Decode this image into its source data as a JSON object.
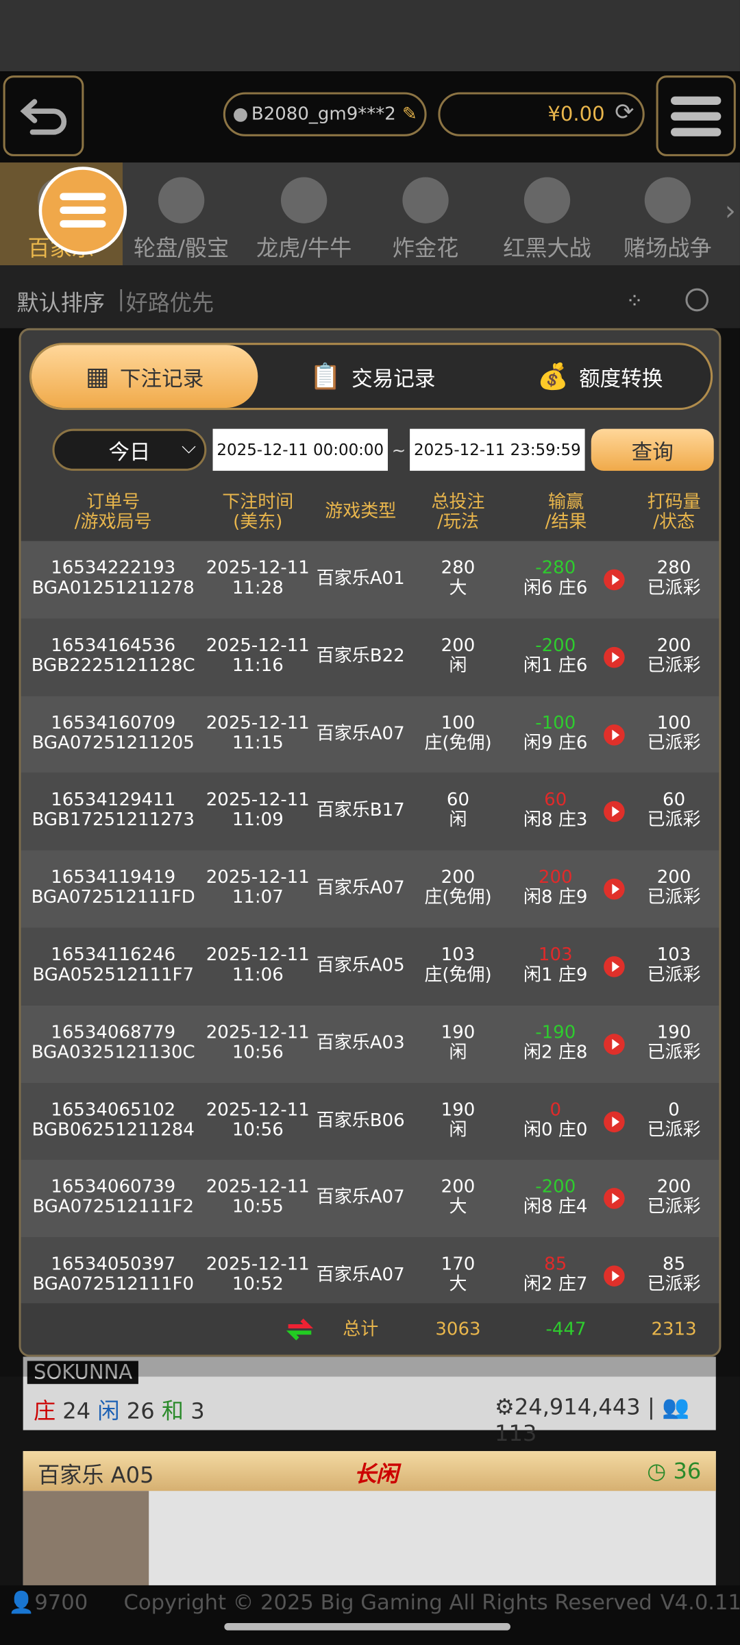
{
  "header": {
    "user": "B2080_gm9***2",
    "balance": "¥0.00"
  },
  "categories": [
    "百家乐",
    "轮盘/骰宝",
    "龙虎/牛牛",
    "炸金花",
    "红黑大战",
    "赌场战争"
  ],
  "sort_options": [
    "默认排序",
    "好路优先"
  ],
  "modal": {
    "tabs": [
      "下注记录",
      "交易记录",
      "额度转换"
    ],
    "filter": {
      "period": "今日",
      "start": "2025-12-11 00:00:00",
      "separator": "~",
      "end": "2025-12-11 23:59:59",
      "query": "查询"
    },
    "table": {
      "headers": [
        [
          "订单号",
          "/游戏局号"
        ],
        [
          "下注时间",
          "(美东)"
        ],
        [
          "游戏类型"
        ],
        [
          "总投注",
          "/玩法"
        ],
        [
          "输赢",
          "/结果"
        ],
        [
          "打码量",
          "/状态"
        ]
      ],
      "rows": [
        {
          "order": "16534222193",
          "round": "BGA01251211278",
          "date": "2025-12-11",
          "time": "11:28",
          "game": "百家乐A01",
          "bet": 280,
          "play": "大",
          "win_loss": -280,
          "result": "闲6 庄6",
          "rolling": 280,
          "status": "已派彩"
        },
        {
          "order": "16534164536",
          "round": "BGB2225121128C",
          "date": "2025-12-11",
          "time": "11:16",
          "game": "百家乐B22",
          "bet": 200,
          "play": "闲",
          "win_loss": -200,
          "result": "闲1 庄6",
          "rolling": 200,
          "status": "已派彩"
        },
        {
          "order": "16534160709",
          "round": "BGA07251211205",
          "date": "2025-12-11",
          "time": "11:15",
          "game": "百家乐A07",
          "bet": 100,
          "play": "庄(免佣)",
          "win_loss": -100,
          "result": "闲9 庄6",
          "rolling": 100,
          "status": "已派彩"
        },
        {
          "order": "16534129411",
          "round": "BGB17251211273",
          "date": "2025-12-11",
          "time": "11:09",
          "game": "百家乐B17",
          "bet": 60,
          "play": "闲",
          "win_loss": 60,
          "result": "闲8 庄3",
          "rolling": 60,
          "status": "已派彩"
        },
        {
          "order": "16534119419",
          "round": "BGA072512111FD",
          "date": "2025-12-11",
          "time": "11:07",
          "game": "百家乐A07",
          "bet": 200,
          "play": "庄(免佣)",
          "win_loss": 200,
          "result": "闲8 庄9",
          "rolling": 200,
          "status": "已派彩"
        },
        {
          "order": "16534116246",
          "round": "BGA052512111F7",
          "date": "2025-12-11",
          "time": "11:06",
          "game": "百家乐A05",
          "bet": 103,
          "play": "庄(免佣)",
          "win_loss": 103,
          "result": "闲1 庄9",
          "rolling": 103,
          "status": "已派彩"
        },
        {
          "order": "16534068779",
          "round": "BGA0325121130C",
          "date": "2025-12-11",
          "time": "10:56",
          "game": "百家乐A03",
          "bet": 190,
          "play": "闲",
          "win_loss": -190,
          "result": "闲2 庄8",
          "rolling": 190,
          "status": "已派彩"
        },
        {
          "order": "16534065102",
          "round": "BGB06251211284",
          "date": "2025-12-11",
          "time": "10:56",
          "game": "百家乐B06",
          "bet": 190,
          "play": "闲",
          "win_loss": 0,
          "result": "闲0 庄0",
          "rolling": 0,
          "status": "已派彩"
        },
        {
          "order": "16534060739",
          "round": "BGA072512111F2",
          "date": "2025-12-11",
          "time": "10:55",
          "game": "百家乐A07",
          "bet": 200,
          "play": "大",
          "win_loss": -200,
          "result": "闲8 庄4",
          "rolling": 200,
          "status": "已派彩"
        },
        {
          "order": "16534050397",
          "round": "BGA072512111F0",
          "date": "2025-12-11",
          "time": "10:52",
          "game": "百家乐A07",
          "bet": 170,
          "play": "大",
          "win_loss": 85,
          "result": "闲2 庄7",
          "rolling": 85,
          "status": "已派彩"
        }
      ],
      "total": {
        "label": "总计",
        "bet": 3063,
        "win_loss": -447,
        "rolling": 2313
      }
    }
  },
  "background": {
    "dealer_name": "SOKUNNA",
    "banker_label": "庄",
    "banker": 24,
    "player_label": "闲",
    "player": 26,
    "tie_label": "和",
    "tie": 3,
    "pool": "24,914,443",
    "players": 113,
    "table_name": "百家乐 A05",
    "road_label": "长闲",
    "countdown": 36
  },
  "footer": {
    "online": 9700,
    "copyright": "Copyright © 2025 Big Gaming All Rights Reserved",
    "version": "V4.0.11"
  }
}
